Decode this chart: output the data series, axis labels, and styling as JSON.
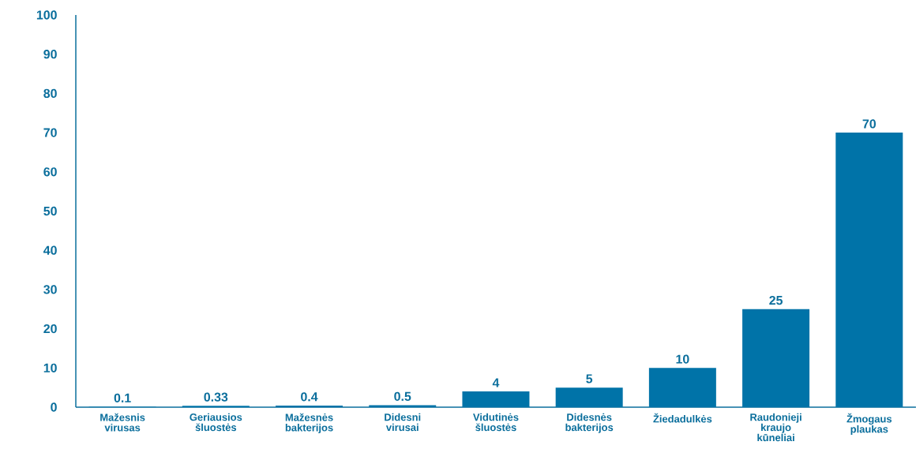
{
  "chart_data": {
    "type": "bar",
    "categories": [
      "Mažesnis virusas",
      "Geriausios šluostės",
      "Mažesnės bakterijos",
      "Didesni virusai",
      "Vidutinės šluostės",
      "Didesnės bakterijos",
      "Žiedadulkės",
      "Raudonieji kraujo kūneliai",
      "Žmogaus plaukas"
    ],
    "values": [
      0.1,
      0.33,
      0.4,
      0.5,
      4,
      5,
      10,
      25,
      70
    ],
    "color": "#0073a8",
    "ylim": [
      0,
      100
    ],
    "yticks": [
      0,
      10,
      20,
      30,
      40,
      50,
      60,
      70,
      80,
      90,
      100
    ],
    "data_labels": true,
    "grid": false
  }
}
